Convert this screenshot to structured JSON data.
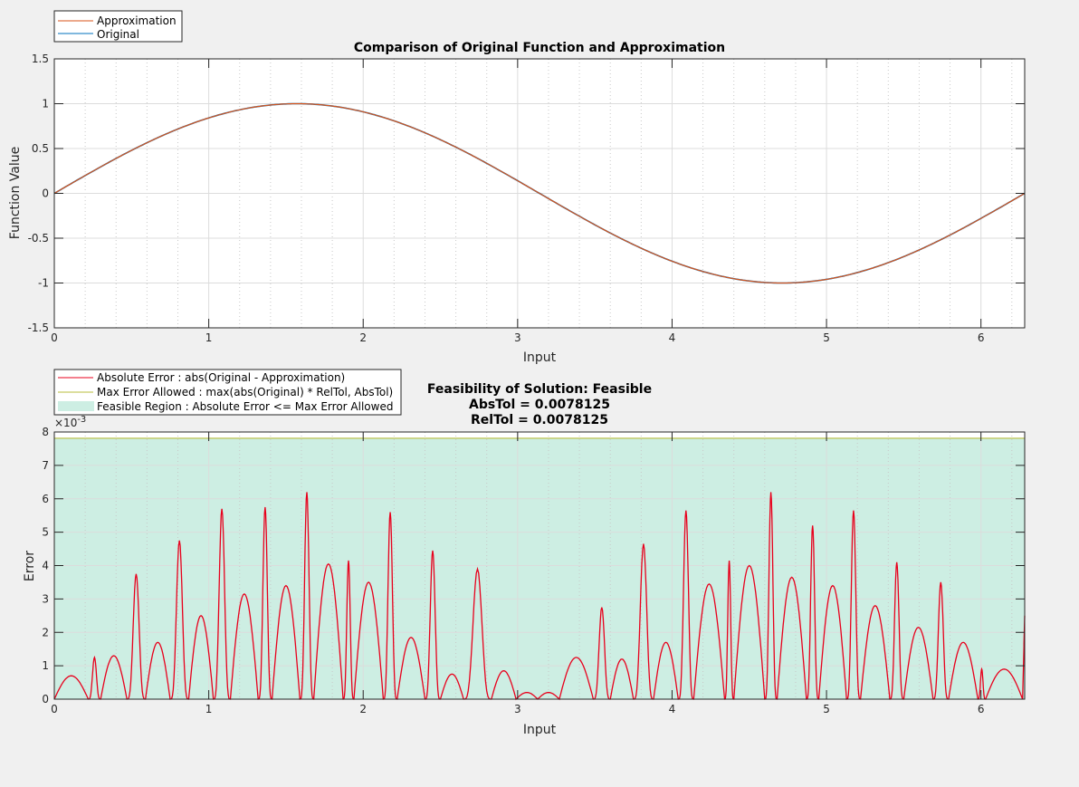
{
  "chart_data": [
    {
      "type": "line",
      "title": "Comparison of Original Function and Approximation",
      "xlabel": "Input",
      "ylabel": "Function Value",
      "xlim": [
        0,
        6.2832
      ],
      "ylim": [
        -1.5,
        1.5
      ],
      "xticks": [
        "0",
        "1",
        "2",
        "3",
        "4",
        "5",
        "6"
      ],
      "yticks": [
        "-1.5",
        "-1",
        "-0.5",
        "0",
        "0.5",
        "1",
        "1.5"
      ],
      "grid": true,
      "legend": {
        "placement": "top-left-outside",
        "entries": [
          "Approximation",
          "Original"
        ]
      },
      "series": [
        {
          "name": "Approximation",
          "function": "sin(x)",
          "color": "#d95319"
        },
        {
          "name": "Original",
          "function": "sin(x)",
          "color": "#0072bd"
        }
      ]
    },
    {
      "type": "line",
      "title_lines": [
        "Feasibility of Solution: Feasible",
        "AbsTol = 0.0078125",
        "RelTol = 0.0078125"
      ],
      "xlabel": "Input",
      "ylabel": "Error",
      "exponent_label": "×10",
      "exponent": "-3",
      "xlim": [
        0,
        6.2832
      ],
      "ylim": [
        0,
        0.008
      ],
      "xticks": [
        "0",
        "1",
        "2",
        "3",
        "4",
        "5",
        "6"
      ],
      "yticks": [
        "0",
        "1",
        "2",
        "3",
        "4",
        "5",
        "6",
        "7",
        "8"
      ],
      "grid": true,
      "legend": {
        "placement": "top-left-outside",
        "entries": [
          "Absolute Error : abs(Original - Approximation)",
          "Max Error Allowed : max(abs(Original) * RelTol, AbsTol)",
          "Feasible Region : Absolute Error <= Max Error Allowed"
        ]
      },
      "max_error_allowed": 0.0078125,
      "colors": {
        "error": "#e8001c",
        "max_error": "#b8bc3c",
        "feasible": "#cdeee3"
      },
      "error_lobes_x_start_end_peak_e-3_shape": [
        [
          0,
          0.22,
          0.7,
          "r"
        ],
        [
          0.22,
          0.3,
          1.25,
          "s"
        ],
        [
          0.3,
          0.47,
          1.3,
          "r"
        ],
        [
          0.47,
          0.59,
          3.75,
          "s"
        ],
        [
          0.59,
          0.75,
          1.7,
          "r"
        ],
        [
          0.75,
          0.87,
          4.75,
          "s"
        ],
        [
          0.87,
          1.03,
          2.5,
          "r"
        ],
        [
          1.03,
          1.14,
          5.7,
          "s"
        ],
        [
          1.14,
          1.32,
          3.15,
          "r"
        ],
        [
          1.32,
          1.41,
          5.75,
          "s"
        ],
        [
          1.41,
          1.59,
          3.4,
          "r"
        ],
        [
          1.59,
          1.68,
          6.2,
          "s"
        ],
        [
          1.68,
          1.87,
          4.05,
          "r"
        ],
        [
          1.87,
          1.94,
          4.15,
          "s"
        ],
        [
          1.94,
          2.13,
          3.5,
          "r"
        ],
        [
          2.13,
          2.22,
          5.6,
          "s"
        ],
        [
          2.22,
          2.4,
          1.85,
          "r"
        ],
        [
          2.4,
          2.5,
          4.45,
          "s"
        ],
        [
          2.5,
          2.65,
          0.75,
          "r"
        ],
        [
          2.65,
          2.83,
          3.9,
          "s"
        ],
        [
          2.83,
          2.99,
          0.85,
          "r"
        ],
        [
          2.99,
          3.13,
          0.2,
          "r"
        ],
        [
          3.13,
          3.27,
          0.2,
          "r"
        ],
        [
          3.27,
          3.49,
          1.25,
          "r"
        ],
        [
          3.49,
          3.6,
          2.75,
          "s"
        ],
        [
          3.6,
          3.75,
          1.2,
          "r"
        ],
        [
          3.75,
          3.88,
          4.65,
          "s"
        ],
        [
          3.88,
          4.04,
          1.7,
          "r"
        ],
        [
          4.04,
          4.14,
          5.65,
          "s"
        ],
        [
          4.14,
          4.34,
          3.45,
          "r"
        ],
        [
          4.34,
          4.4,
          4.15,
          "s"
        ],
        [
          4.4,
          4.6,
          4.0,
          "r"
        ],
        [
          4.6,
          4.68,
          6.2,
          "s"
        ],
        [
          4.68,
          4.87,
          3.65,
          "r"
        ],
        [
          4.87,
          4.95,
          5.2,
          "s"
        ],
        [
          4.95,
          5.13,
          3.4,
          "r"
        ],
        [
          5.13,
          5.22,
          5.65,
          "s"
        ],
        [
          5.22,
          5.41,
          2.8,
          "r"
        ],
        [
          5.41,
          5.5,
          4.1,
          "s"
        ],
        [
          5.5,
          5.69,
          2.15,
          "r"
        ],
        [
          5.69,
          5.79,
          3.5,
          "s"
        ],
        [
          5.79,
          5.98,
          1.7,
          "r"
        ],
        [
          5.98,
          6.03,
          0.9,
          "s"
        ],
        [
          6.03,
          6.27,
          0.9,
          "r"
        ],
        [
          6.27,
          6.2832,
          2.5,
          "e"
        ]
      ]
    }
  ]
}
